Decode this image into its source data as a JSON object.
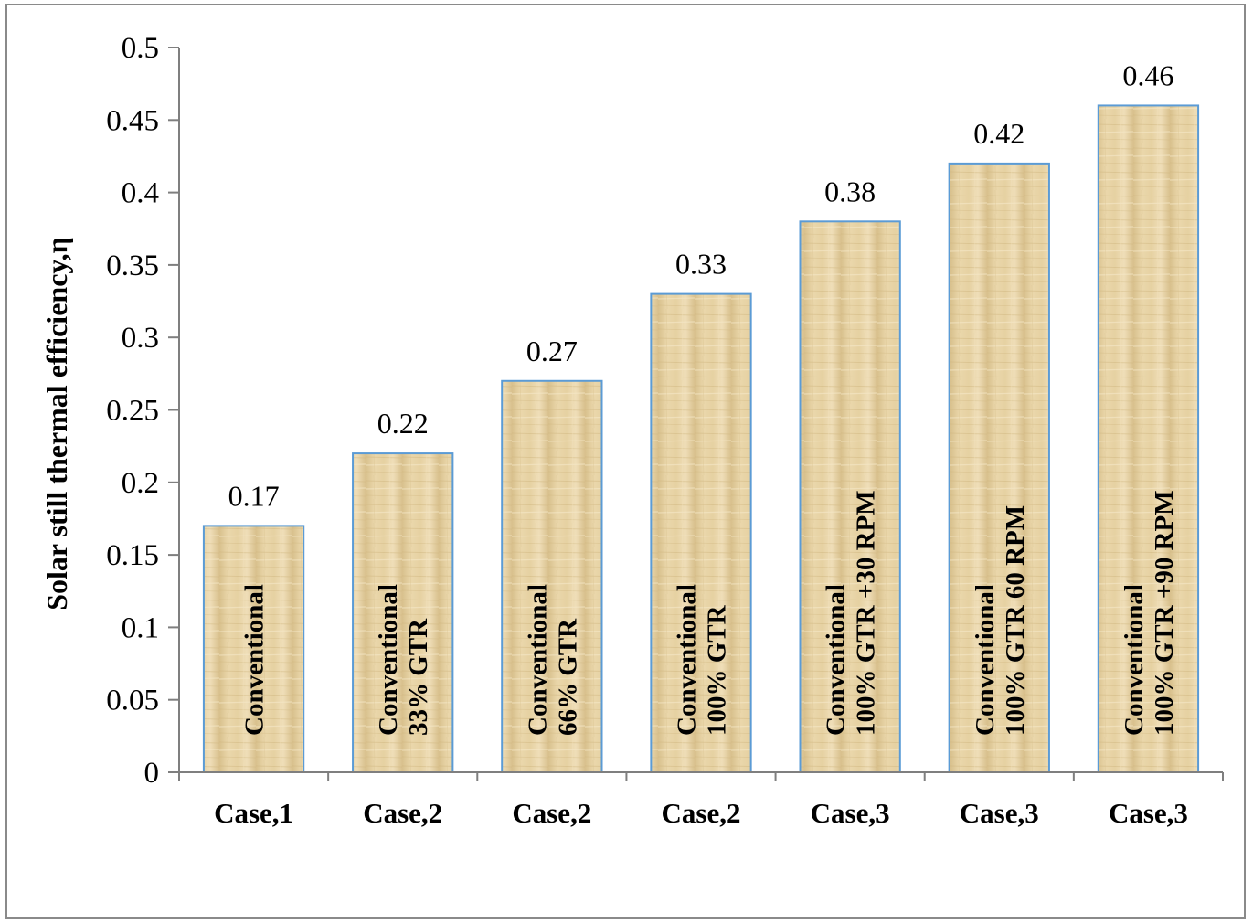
{
  "chart_data": {
    "type": "bar",
    "title": "",
    "xlabel": "",
    "ylabel": "Solar still thermal efficiency,η",
    "ylim": [
      0,
      0.5
    ],
    "ytick_values": [
      0,
      0.05,
      0.1,
      0.15,
      0.2,
      0.25,
      0.3,
      0.35,
      0.4,
      0.45,
      0.5
    ],
    "ytick_labels": [
      "0",
      "0.05",
      "0.1",
      "0.15",
      "0.2",
      "0.25",
      "0.3",
      "0.35",
      "0.4",
      "0.45",
      "0.5"
    ],
    "categories": [
      "Case,1",
      "Case,2",
      "Case,2",
      "Case,2",
      "Case,3",
      "Case,3",
      "Case,3"
    ],
    "values": [
      0.17,
      0.22,
      0.27,
      0.33,
      0.38,
      0.42,
      0.46
    ],
    "data_labels": [
      "0.17",
      "0.22",
      "0.27",
      "0.33",
      "0.38",
      "0.42",
      "0.46"
    ],
    "bar_annotations": [
      [
        "Conventional"
      ],
      [
        "Conventional",
        "33% GTR"
      ],
      [
        "Conventional",
        "66% GTR"
      ],
      [
        "Conventional",
        "100% GTR"
      ],
      [
        "Conventional",
        "100% GTR +30 RPM"
      ],
      [
        "Conventional",
        "100% GTR 60 RPM"
      ],
      [
        "Conventional",
        "100% GTR +90 RPM"
      ]
    ],
    "grid": false,
    "legend": "none",
    "colors": {
      "bar_fill": "#e3cd9d",
      "bar_fill_light": "#efdfb9",
      "bar_fill_dark": "#d4bb85",
      "bar_edge": "#5b9bd5",
      "axis": "#7f7f7f"
    }
  }
}
